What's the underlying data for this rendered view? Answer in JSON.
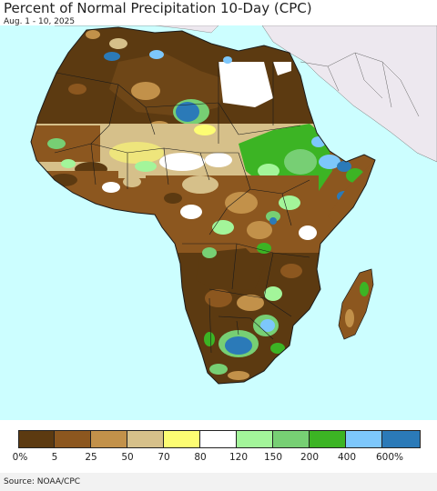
{
  "header": {
    "title": "Percent of Normal Precipitation 10-Day (CPC)",
    "subtitle": "Aug. 1 - 10, 2025"
  },
  "legend": {
    "colors": [
      "#5c3a11",
      "#8c571f",
      "#c2914a",
      "#d6c08a",
      "#fdfd73",
      "#ffffff",
      "#a3f59a",
      "#77cf74",
      "#3cb424",
      "#7dc7fb",
      "#2b7ab8"
    ],
    "ticks": [
      "0%",
      "5",
      "25",
      "50",
      "70",
      "80",
      "120",
      "150",
      "200",
      "400",
      "600%"
    ]
  },
  "footer": {
    "source": "Source: NOAA/CPC"
  },
  "map": {
    "ocean_color": "#ccfeff",
    "outside_land_color": "#ede8ef",
    "border_color": "#1a1a1a"
  }
}
